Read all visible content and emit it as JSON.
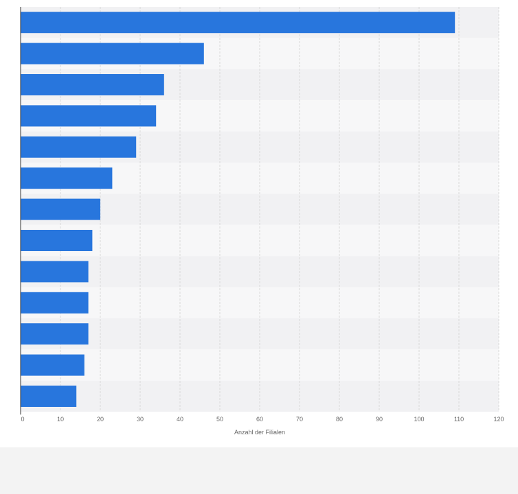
{
  "chart_data": {
    "type": "bar",
    "orientation": "horizontal",
    "categories": [
      "",
      "",
      "",
      "",
      "",
      "",
      "",
      "",
      "",
      "",
      "",
      "",
      ""
    ],
    "values": [
      109,
      46,
      36,
      34,
      29,
      23,
      20,
      18,
      17,
      17,
      17,
      16,
      14
    ],
    "xlabel": "Anzahl der Filialen",
    "ylabel": "",
    "xlim": [
      0,
      120
    ],
    "x_ticks": [
      0,
      10,
      20,
      30,
      40,
      50,
      60,
      70,
      80,
      90,
      100,
      110,
      120
    ],
    "grid": true,
    "legend": "none",
    "colors": {
      "bar": "#2876dd",
      "band_light": "#f7f7f8",
      "band_dark": "#f1f1f3",
      "grid": "#d9d9d9",
      "axis": "#333333",
      "footer": "#f3f3f3"
    }
  }
}
